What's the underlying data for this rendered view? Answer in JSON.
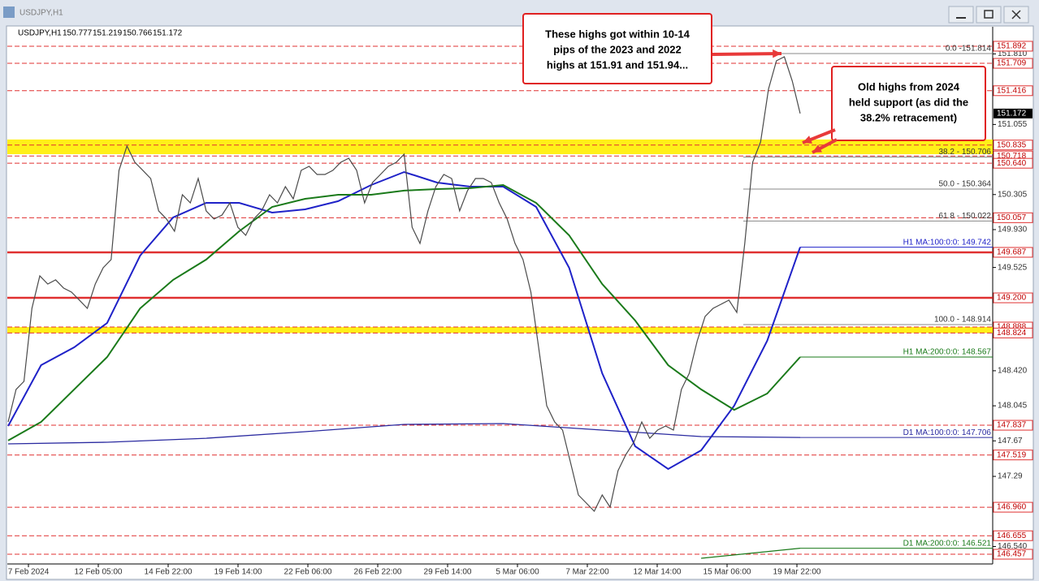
{
  "window_title": "USDJPY,H1",
  "chart_data": {
    "type": "line",
    "symbol": "USDJPY,H1",
    "ohlc": [
      150.777,
      151.219,
      150.766,
      151.172
    ],
    "ylim": [
      146.353,
      152.1
    ],
    "yticks": [
      {
        "value": 151.81,
        "label": "151.810"
      },
      151.055,
      150.305,
      {
        "value": 149.93,
        "label": "149.930"
      },
      149.525,
      {
        "value": 148.42,
        "label": "148.420"
      },
      148.045,
      147.67,
      147.29,
      {
        "value": 146.54,
        "label": "146.540"
      }
    ],
    "levels": [
      151.892,
      151.709,
      151.416,
      150.835,
      150.718,
      {
        "value": 150.64,
        "label": "150.640"
      },
      150.057,
      148.888,
      148.824,
      147.837,
      147.519,
      {
        "value": 146.96,
        "label": "146.960"
      },
      146.655,
      146.457
    ],
    "key_levels": [
      149.687,
      {
        "value": 149.2,
        "label": "149.200"
      }
    ],
    "zones": [
      [
        150.737,
        150.894
      ],
      [
        148.824,
        148.888
      ]
    ],
    "last_price": 151.172,
    "fib": [
      {
        "label": "0.0 -151.814",
        "value": 151.814
      },
      {
        "label": "38.2 - 150.706",
        "value": 150.706
      },
      {
        "label": "50.0 - 150.364",
        "value": 150.364
      },
      {
        "label": "61.8 - 150.022",
        "value": 150.022
      },
      {
        "label": "100.0 - 148.914",
        "value": 148.914
      }
    ],
    "x_labels": [
      "7 Feb 2024",
      "12 Feb 05:00",
      "14 Feb 22:00",
      "19 Feb 14:00",
      "22 Feb 06:00",
      "26 Feb 22:00",
      "29 Feb 14:00",
      "5 Mar 06:00",
      "7 Mar 22:00",
      "12 Mar 14:00",
      "15 Mar 06:00",
      "19 Mar 22:00"
    ],
    "price": {
      "color": "#4a4a4a",
      "values": [
        147.872,
        148.22,
        148.306,
        149.088,
        149.435,
        149.348,
        149.392,
        149.305,
        149.261,
        149.175,
        149.088,
        149.348,
        149.522,
        149.609,
        150.564,
        150.824,
        150.65,
        150.564,
        150.477,
        150.13,
        150.043,
        149.912,
        150.303,
        150.216,
        150.477,
        150.13,
        150.043,
        150.086,
        150.216,
        149.956,
        149.869,
        150.043,
        150.13,
        150.303,
        150.216,
        150.39,
        150.26,
        150.564,
        150.607,
        150.52,
        150.52,
        150.564,
        150.65,
        150.694,
        150.564,
        150.216,
        150.433,
        150.52,
        150.607,
        150.65,
        150.737,
        149.956,
        149.782,
        150.13,
        150.39,
        150.52,
        150.477,
        150.13,
        150.347,
        150.477,
        150.477,
        150.433,
        150.216,
        150.043,
        149.782,
        149.609,
        149.261,
        148.654,
        148.046,
        147.872,
        147.785,
        147.438,
        147.091,
        147.004,
        146.917,
        147.091,
        146.961,
        147.351,
        147.525,
        147.655,
        147.872,
        147.698,
        147.785,
        147.829,
        147.785,
        148.22,
        148.393,
        148.74,
        149.001,
        149.088,
        149.131,
        149.175,
        149.044,
        149.782,
        150.65,
        150.868,
        151.432,
        151.736,
        151.779,
        151.519,
        151.172
      ]
    },
    "series": [
      {
        "name": "H1 MA:100:0:0: 149.742",
        "color": "#1f22c8",
        "values": [
          147.829,
          148.48,
          148.671,
          148.931,
          149.652,
          150.06,
          150.216,
          150.216,
          150.112,
          150.147,
          150.234,
          150.407,
          150.546,
          150.433,
          150.39,
          150.39,
          150.173,
          149.522,
          148.393,
          147.612,
          147.369,
          147.568,
          148.046,
          148.74,
          149.742
        ]
      },
      {
        "name": "H1 MA:200:0:0: 148.567",
        "color": "#1a7a1a",
        "values": [
          147.673,
          147.872,
          148.22,
          148.567,
          149.088,
          149.392,
          149.609,
          149.912,
          150.173,
          150.26,
          150.303,
          150.303,
          150.347,
          150.364,
          150.373,
          150.407,
          150.216,
          149.869,
          149.348,
          148.957,
          148.48,
          148.22,
          148.002,
          148.176,
          148.567
        ]
      },
      {
        "name": "D1 MA:100:0:0: 147.706",
        "color": "#2a2aa0",
        "values": [
          147.638,
          147.655,
          147.698,
          147.768,
          147.846,
          147.855,
          147.785,
          147.716,
          147.706
        ]
      },
      {
        "name": "D1 MA:200:0:0: 146.521",
        "color": "#1a7a1a",
        "values": [
          null,
          null,
          null,
          null,
          null,
          null,
          null,
          146.414,
          146.521
        ]
      }
    ],
    "annotations": [
      {
        "lines": [
          "These highs got within 10-14",
          "pips of the 2023 and 2022",
          "highs at 151.91 and 151.94..."
        ]
      },
      {
        "lines": [
          "Old highs from 2024",
          "held support (as did the",
          "38.2% retracement)"
        ]
      }
    ]
  }
}
